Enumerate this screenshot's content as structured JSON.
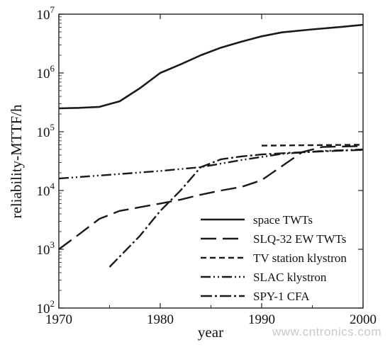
{
  "chart_data": {
    "type": "line",
    "xlabel": "year",
    "ylabel": "reliability-MTTF/h",
    "xlim": [
      1970,
      2000
    ],
    "ylim": [
      100,
      10000000
    ],
    "yscale": "log",
    "grid": false,
    "legend_position": "bottom-right",
    "x_ticks": [
      "1970",
      "1980",
      "1990",
      "2000"
    ],
    "y_ticks": [
      {
        "base": "10",
        "exp": "2",
        "value": 100
      },
      {
        "base": "10",
        "exp": "3",
        "value": 1000
      },
      {
        "base": "10",
        "exp": "4",
        "value": 10000
      },
      {
        "base": "10",
        "exp": "5",
        "value": 100000
      },
      {
        "base": "10",
        "exp": "6",
        "value": 1000000
      },
      {
        "base": "10",
        "exp": "7",
        "value": 10000000
      }
    ],
    "series": [
      {
        "name": "space TWTs",
        "dash": "solid",
        "points": [
          [
            1970,
            250000
          ],
          [
            1972,
            255000
          ],
          [
            1974,
            265000
          ],
          [
            1976,
            330000
          ],
          [
            1978,
            550000
          ],
          [
            1980,
            1000000
          ],
          [
            1982,
            1400000
          ],
          [
            1984,
            2000000
          ],
          [
            1986,
            2700000
          ],
          [
            1988,
            3400000
          ],
          [
            1990,
            4200000
          ],
          [
            1992,
            4900000
          ],
          [
            1995,
            5500000
          ],
          [
            1998,
            6100000
          ],
          [
            2000,
            6600000
          ]
        ]
      },
      {
        "name": "SLQ-32 EW TWTs",
        "dash": "long-dash",
        "points": [
          [
            1970,
            1000
          ],
          [
            1972,
            1800
          ],
          [
            1974,
            3300
          ],
          [
            1976,
            4500
          ],
          [
            1978,
            5200
          ],
          [
            1980,
            6000
          ],
          [
            1982,
            7000
          ],
          [
            1984,
            8500
          ],
          [
            1986,
            10000
          ],
          [
            1988,
            11500
          ],
          [
            1990,
            15000
          ],
          [
            1992,
            26000
          ],
          [
            1994,
            45000
          ],
          [
            1996,
            55000
          ],
          [
            2000,
            57000
          ]
        ]
      },
      {
        "name": "TV station klystron",
        "dash": "short-dash",
        "points": [
          [
            1990,
            58000
          ],
          [
            1995,
            59000
          ],
          [
            2000,
            60000
          ]
        ]
      },
      {
        "name": "SLAC klystron",
        "dash": "dash-dot-dot",
        "points": [
          [
            1970,
            16000
          ],
          [
            1975,
            18500
          ],
          [
            1980,
            21500
          ],
          [
            1984,
            25000
          ],
          [
            1988,
            33000
          ],
          [
            1992,
            42000
          ],
          [
            1996,
            47000
          ],
          [
            2000,
            50000
          ]
        ]
      },
      {
        "name": "SPY-1 CFA",
        "dash": "dash-dot",
        "points": [
          [
            1975,
            500
          ],
          [
            1978,
            1700
          ],
          [
            1980,
            4500
          ],
          [
            1982,
            10000
          ],
          [
            1984,
            25000
          ],
          [
            1986,
            34000
          ],
          [
            1988,
            38000
          ],
          [
            1990,
            41000
          ],
          [
            1993,
            44000
          ],
          [
            1997,
            47000
          ],
          [
            2000,
            49000
          ]
        ]
      }
    ],
    "watermark": "www.cntronics.com"
  }
}
